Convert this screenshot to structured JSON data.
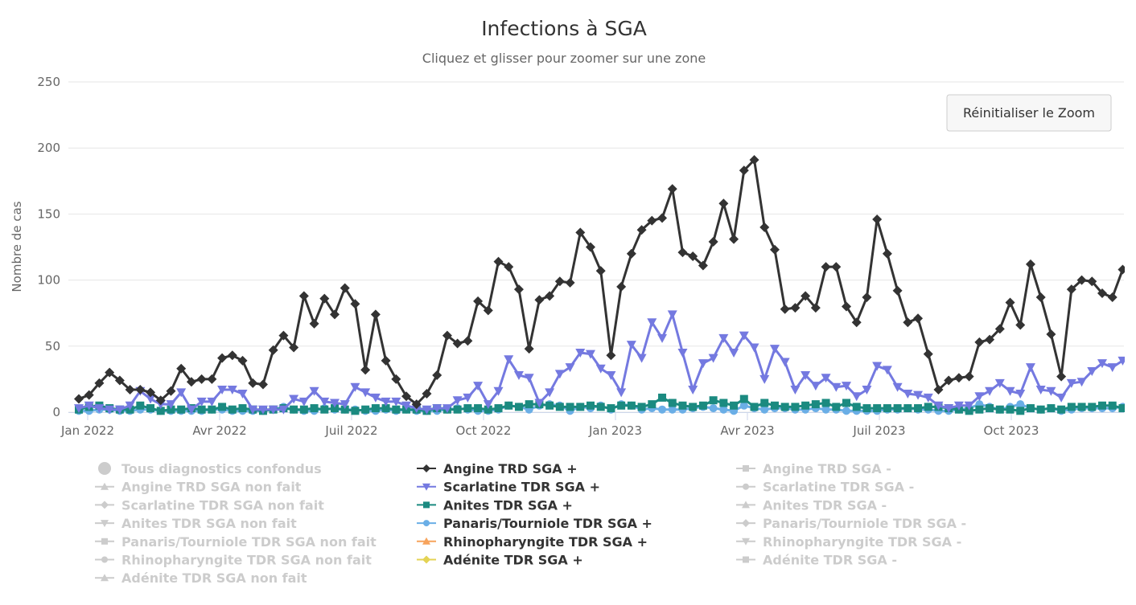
{
  "chart_data": {
    "type": "line",
    "title": "Infections à SGA",
    "subtitle": "Cliquez et glisser pour zoomer sur une zone",
    "ylabel": "Nombre de cas",
    "xlabel": "",
    "ylim": [
      0,
      250
    ],
    "yticks": [
      0,
      50,
      100,
      150,
      200,
      250
    ],
    "xtick_labels": [
      "Jan 2022",
      "Avr 2022",
      "Juil 2022",
      "Oct 2022",
      "Jan 2023",
      "Avr 2023",
      "Juil 2023",
      "Oct 2023"
    ],
    "x_unit": "weekly points, Jan 2022 - Dec 2023",
    "grid": true,
    "legend_placement": "bottom",
    "reset_zoom_label": "Réinitialiser le Zoom",
    "series": [
      {
        "name": "Angine TRD SGA +",
        "color": "#333333",
        "marker": "diamond",
        "visible": true,
        "values": [
          10,
          13,
          22,
          30,
          24,
          17,
          17,
          15,
          9,
          16,
          33,
          23,
          25,
          25,
          41,
          43,
          39,
          22,
          21,
          47,
          58,
          49,
          88,
          67,
          86,
          74,
          94,
          82,
          32,
          74,
          39,
          25,
          12,
          6,
          14,
          28,
          58,
          52,
          54,
          84,
          77,
          114,
          110,
          93,
          48,
          85,
          88,
          99,
          98,
          136,
          125,
          107,
          43,
          95,
          120,
          138,
          145,
          147,
          169,
          121,
          118,
          111,
          129,
          158,
          131,
          183,
          191,
          140,
          123,
          78,
          79,
          88,
          79,
          110,
          110,
          80,
          68,
          87,
          146,
          120,
          92,
          68,
          71,
          44,
          17,
          24,
          26,
          27,
          53,
          55,
          63,
          83,
          66,
          112,
          87,
          59,
          27,
          93,
          100,
          99,
          90,
          87,
          108
        ]
      },
      {
        "name": "Scarlatine TDR SGA +",
        "color": "#7479e0",
        "marker": "triangle-down",
        "visible": true,
        "values": [
          3,
          5,
          3,
          2,
          2,
          5,
          16,
          10,
          6,
          6,
          15,
          2,
          8,
          8,
          17,
          17,
          14,
          2,
          2,
          2,
          2,
          10,
          8,
          16,
          8,
          7,
          6,
          19,
          15,
          11,
          8,
          8,
          5,
          3,
          2,
          3,
          3,
          9,
          11,
          20,
          6,
          16,
          40,
          28,
          26,
          7,
          15,
          29,
          34,
          45,
          44,
          33,
          28,
          15,
          51,
          41,
          68,
          56,
          74,
          45,
          17,
          37,
          41,
          56,
          45,
          58,
          49,
          25,
          48,
          38,
          17,
          28,
          20,
          26,
          19,
          20,
          12,
          17,
          35,
          32,
          19,
          14,
          13,
          11,
          5,
          3,
          5,
          5,
          12,
          16,
          22,
          16,
          14,
          34,
          17,
          16,
          11,
          22,
          23,
          31,
          37,
          34,
          39
        ]
      },
      {
        "name": "Anites TDR SGA +",
        "color": "#1b8a80",
        "marker": "square",
        "visible": true,
        "values": [
          2,
          4,
          5,
          3,
          2,
          2,
          5,
          3,
          1,
          2,
          2,
          3,
          2,
          2,
          4,
          2,
          3,
          2,
          1,
          2,
          3,
          2,
          2,
          3,
          2,
          3,
          2,
          1,
          2,
          3,
          3,
          2,
          2,
          2,
          1,
          3,
          2,
          2,
          3,
          3,
          2,
          3,
          5,
          4,
          6,
          6,
          5,
          4,
          4,
          4,
          5,
          4,
          3,
          5,
          5,
          4,
          6,
          11,
          7,
          5,
          4,
          5,
          9,
          7,
          5,
          10,
          4,
          7,
          5,
          4,
          4,
          5,
          6,
          7,
          4,
          7,
          4,
          3,
          3,
          3,
          3,
          3,
          3,
          4,
          4,
          3,
          2,
          1,
          2,
          3,
          2,
          2,
          1,
          3,
          2,
          3,
          2,
          4,
          4,
          4,
          5,
          5,
          3
        ]
      },
      {
        "name": "Panaris/Tourniole TDR SGA +",
        "color": "#6aaee6",
        "marker": "circle",
        "visible": true,
        "values": [
          1,
          1,
          2,
          2,
          1,
          1,
          2,
          2,
          1,
          1,
          1,
          1,
          1,
          2,
          2,
          1,
          1,
          1,
          1,
          2,
          4,
          2,
          1,
          1,
          3,
          2,
          2,
          2,
          1,
          1,
          2,
          1,
          2,
          1,
          1,
          1,
          2,
          3,
          2,
          1,
          1,
          2,
          5,
          4,
          2,
          5,
          6,
          5,
          1,
          4,
          3,
          5,
          2,
          6,
          5,
          2,
          3,
          2,
          2,
          2,
          3,
          4,
          3,
          2,
          1,
          5,
          3,
          2,
          3,
          3,
          2,
          2,
          3,
          2,
          2,
          1,
          1,
          1,
          1,
          2,
          2,
          3,
          2,
          2,
          1,
          1,
          2,
          3,
          6,
          4,
          2,
          4,
          6,
          3,
          2,
          3,
          1,
          2,
          3,
          3,
          3,
          3,
          4
        ]
      },
      {
        "name": "Rhinopharyngite TDR SGA +",
        "color": "#f7a35c",
        "marker": "triangle",
        "visible": true,
        "values": []
      },
      {
        "name": "Adénite TDR SGA +",
        "color": "#e4d354",
        "marker": "diamond",
        "visible": true,
        "values": []
      }
    ],
    "legend": [
      [
        {
          "name": "Tous diagnostics confondus",
          "marker": "circle",
          "visible": false
        },
        {
          "name": "Angine TRD SGA non fait",
          "marker": "triangle",
          "visible": false
        },
        {
          "name": "Scarlatine TDR SGA non fait",
          "marker": "diamond",
          "visible": false
        },
        {
          "name": "Anites TDR SGA non fait",
          "marker": "triangle-down",
          "visible": false
        },
        {
          "name": "Panaris/Tourniole TDR SGA non fait",
          "marker": "square",
          "visible": false
        },
        {
          "name": "Rhinopharyngite TDR SGA non fait",
          "marker": "circle",
          "visible": false
        },
        {
          "name": "Adénite TDR SGA non fait",
          "marker": "triangle",
          "visible": false
        }
      ],
      [
        {
          "name": "Angine TRD SGA +",
          "marker": "diamond",
          "color": "#333333",
          "visible": true
        },
        {
          "name": "Scarlatine TDR SGA +",
          "marker": "triangle-down",
          "color": "#7479e0",
          "visible": true
        },
        {
          "name": "Anites TDR SGA +",
          "marker": "square",
          "color": "#1b8a80",
          "visible": true
        },
        {
          "name": "Panaris/Tourniole TDR SGA +",
          "marker": "circle",
          "color": "#6aaee6",
          "visible": true
        },
        {
          "name": "Rhinopharyngite TDR SGA +",
          "marker": "triangle",
          "color": "#f7a35c",
          "visible": true
        },
        {
          "name": "Adénite TDR SGA +",
          "marker": "diamond",
          "color": "#e4d354",
          "visible": true
        }
      ],
      [
        {
          "name": "Angine TRD SGA -",
          "marker": "square",
          "visible": false
        },
        {
          "name": "Scarlatine TDR SGA -",
          "marker": "circle",
          "visible": false
        },
        {
          "name": "Anites TDR SGA -",
          "marker": "triangle",
          "visible": false
        },
        {
          "name": "Panaris/Tourniole TDR SGA -",
          "marker": "diamond",
          "visible": false
        },
        {
          "name": "Rhinopharyngite TDR SGA -",
          "marker": "triangle-down",
          "visible": false
        },
        {
          "name": "Adénite TDR SGA -",
          "marker": "square",
          "visible": false
        }
      ]
    ]
  }
}
